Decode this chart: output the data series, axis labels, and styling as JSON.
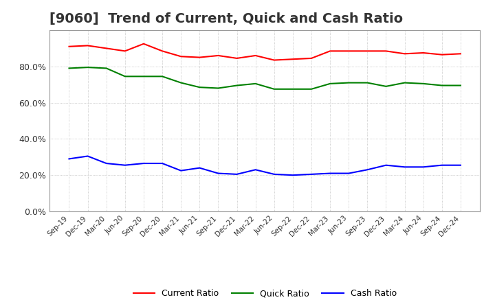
{
  "title": "[9060]  Trend of Current, Quick and Cash Ratio",
  "x_labels": [
    "Sep-19",
    "Dec-19",
    "Mar-20",
    "Jun-20",
    "Sep-20",
    "Dec-20",
    "Mar-21",
    "Jun-21",
    "Sep-21",
    "Dec-21",
    "Mar-22",
    "Jun-22",
    "Sep-22",
    "Dec-22",
    "Mar-23",
    "Jun-23",
    "Sep-23",
    "Dec-23",
    "Mar-24",
    "Jun-24",
    "Sep-24",
    "Dec-24"
  ],
  "current_ratio": [
    91.0,
    91.5,
    90.0,
    88.5,
    92.5,
    88.5,
    85.5,
    85.0,
    86.0,
    84.5,
    86.0,
    83.5,
    84.0,
    84.5,
    88.5,
    88.5,
    88.5,
    88.5,
    87.0,
    87.5,
    86.5,
    87.0
  ],
  "quick_ratio": [
    79.0,
    79.5,
    79.0,
    74.5,
    74.5,
    74.5,
    71.0,
    68.5,
    68.0,
    69.5,
    70.5,
    67.5,
    67.5,
    67.5,
    70.5,
    71.0,
    71.0,
    69.0,
    71.0,
    70.5,
    69.5,
    69.5
  ],
  "cash_ratio": [
    29.0,
    30.5,
    26.5,
    25.5,
    26.5,
    26.5,
    22.5,
    24.0,
    21.0,
    20.5,
    23.0,
    20.5,
    20.0,
    20.5,
    21.0,
    21.0,
    23.0,
    25.5,
    24.5,
    24.5,
    25.5,
    25.5
  ],
  "current_color": "#FF0000",
  "quick_color": "#008000",
  "cash_color": "#0000FF",
  "ylim": [
    0,
    100
  ],
  "yticks": [
    0,
    20,
    40,
    60,
    80
  ],
  "ytick_labels": [
    "0.0%",
    "20.0%",
    "40.0%",
    "60.0%",
    "80.0%"
  ],
  "background_color": "#FFFFFF",
  "grid_color": "#AAAAAA",
  "title_fontsize": 14,
  "legend_labels": [
    "Current Ratio",
    "Quick Ratio",
    "Cash Ratio"
  ]
}
